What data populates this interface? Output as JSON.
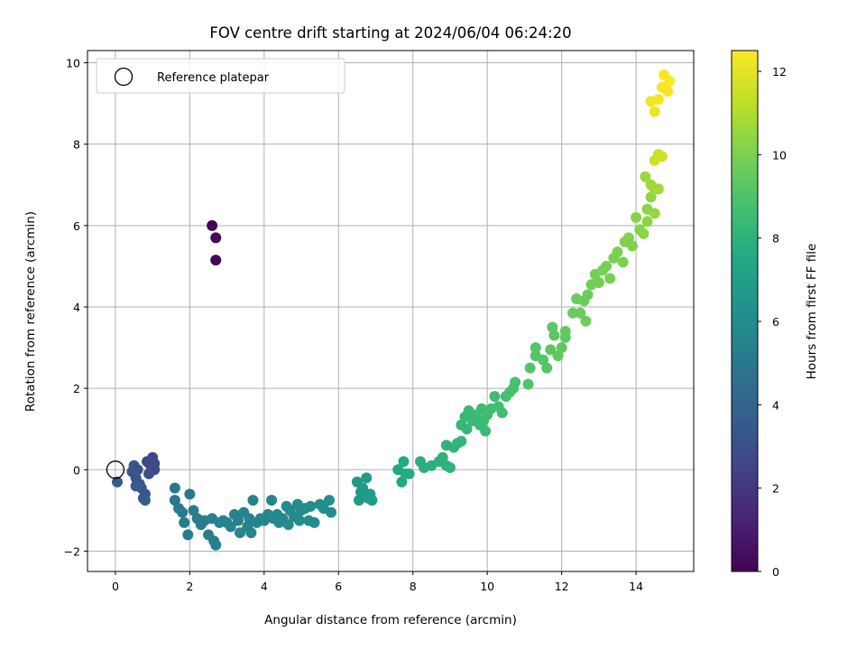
{
  "chart_data": {
    "type": "scatter",
    "title": "FOV centre drift starting at 2024/06/04 06:24:20",
    "xlabel": "Angular distance from reference (arcmin)",
    "ylabel": "Rotation from reference (arcmin)",
    "xlim": [
      -0.75,
      15.55
    ],
    "ylim": [
      -2.5,
      10.3
    ],
    "xticks": [
      0,
      2,
      4,
      6,
      8,
      10,
      12,
      14
    ],
    "yticks": [
      -2,
      0,
      2,
      4,
      6,
      8,
      10
    ],
    "xtick_labels": [
      "0",
      "2",
      "4",
      "6",
      "8",
      "10",
      "12",
      "14"
    ],
    "ytick_labels": [
      "−2",
      "0",
      "2",
      "4",
      "6",
      "8",
      "10"
    ],
    "grid": true,
    "colormap": "viridis",
    "colorbar": {
      "label": "Hours from first FF file",
      "range": [
        0,
        12.5
      ],
      "ticks": [
        0,
        2,
        4,
        6,
        8,
        10,
        12
      ],
      "tick_labels": [
        "0",
        "2",
        "4",
        "6",
        "8",
        "10",
        "12"
      ]
    },
    "legend": {
      "entries": [
        "Reference platepar"
      ],
      "position": "upper-left"
    },
    "reference_point": {
      "x": 0,
      "y": 0,
      "label": "Reference platepar"
    },
    "series": [
      {
        "points": [
          {
            "x": 2.6,
            "y": 6.0,
            "c": 0.1
          },
          {
            "x": 2.7,
            "y": 5.7,
            "c": 0.2
          },
          {
            "x": 2.7,
            "y": 5.15,
            "c": 0.3
          },
          {
            "x": 0.05,
            "y": -0.3,
            "c": 3.5
          },
          {
            "x": 0.45,
            "y": -0.05,
            "c": 3.4
          },
          {
            "x": 0.5,
            "y": 0.1,
            "c": 3.3
          },
          {
            "x": 0.55,
            "y": -0.2,
            "c": 3.2
          },
          {
            "x": 0.6,
            "y": 0.0,
            "c": 3.2
          },
          {
            "x": 0.65,
            "y": -0.35,
            "c": 3.3
          },
          {
            "x": 0.7,
            "y": -0.45,
            "c": 3.4
          },
          {
            "x": 0.75,
            "y": -0.7,
            "c": 3.5
          },
          {
            "x": 0.8,
            "y": -0.6,
            "c": 3.3
          },
          {
            "x": 0.85,
            "y": 0.2,
            "c": 2.8
          },
          {
            "x": 0.95,
            "y": 0.1,
            "c": 2.7
          },
          {
            "x": 1.0,
            "y": 0.3,
            "c": 2.6
          },
          {
            "x": 1.05,
            "y": 0.15,
            "c": 2.7
          },
          {
            "x": 1.05,
            "y": 0.0,
            "c": 2.8
          },
          {
            "x": 0.9,
            "y": -0.1,
            "c": 3.0
          },
          {
            "x": 0.55,
            "y": -0.4,
            "c": 3.5
          },
          {
            "x": 0.8,
            "y": -0.75,
            "c": 3.6
          },
          {
            "x": 1.6,
            "y": -0.45,
            "c": 5.0
          },
          {
            "x": 1.6,
            "y": -0.75,
            "c": 5.0
          },
          {
            "x": 1.7,
            "y": -0.95,
            "c": 5.1
          },
          {
            "x": 1.8,
            "y": -1.05,
            "c": 5.1
          },
          {
            "x": 1.85,
            "y": -1.3,
            "c": 5.1
          },
          {
            "x": 1.95,
            "y": -1.6,
            "c": 5.2
          },
          {
            "x": 2.0,
            "y": -0.6,
            "c": 5.0
          },
          {
            "x": 2.1,
            "y": -1.0,
            "c": 5.2
          },
          {
            "x": 2.2,
            "y": -1.2,
            "c": 5.3
          },
          {
            "x": 2.3,
            "y": -1.35,
            "c": 5.3
          },
          {
            "x": 2.4,
            "y": -1.25,
            "c": 5.3
          },
          {
            "x": 2.5,
            "y": -1.6,
            "c": 5.3
          },
          {
            "x": 2.6,
            "y": -1.2,
            "c": 5.4
          },
          {
            "x": 2.65,
            "y": -1.75,
            "c": 5.4
          },
          {
            "x": 2.7,
            "y": -1.85,
            "c": 5.4
          },
          {
            "x": 2.8,
            "y": -1.3,
            "c": 5.4
          },
          {
            "x": 2.9,
            "y": -1.25,
            "c": 5.5
          },
          {
            "x": 3.0,
            "y": -1.3,
            "c": 5.5
          },
          {
            "x": 3.1,
            "y": -1.4,
            "c": 5.5
          },
          {
            "x": 3.2,
            "y": -1.1,
            "c": 5.5
          },
          {
            "x": 3.3,
            "y": -1.25,
            "c": 5.5
          },
          {
            "x": 3.35,
            "y": -1.55,
            "c": 5.6
          },
          {
            "x": 3.45,
            "y": -1.05,
            "c": 5.6
          },
          {
            "x": 3.55,
            "y": -1.4,
            "c": 5.6
          },
          {
            "x": 3.6,
            "y": -1.2,
            "c": 5.6
          },
          {
            "x": 3.65,
            "y": -1.55,
            "c": 5.6
          },
          {
            "x": 3.7,
            "y": -0.75,
            "c": 5.6
          },
          {
            "x": 3.8,
            "y": -1.3,
            "c": 5.7
          },
          {
            "x": 3.9,
            "y": -1.2,
            "c": 5.7
          },
          {
            "x": 4.0,
            "y": -1.25,
            "c": 5.7
          },
          {
            "x": 4.1,
            "y": -1.1,
            "c": 5.7
          },
          {
            "x": 4.2,
            "y": -0.75,
            "c": 5.8
          },
          {
            "x": 4.25,
            "y": -1.2,
            "c": 5.8
          },
          {
            "x": 4.35,
            "y": -1.1,
            "c": 5.8
          },
          {
            "x": 4.4,
            "y": -1.3,
            "c": 5.8
          },
          {
            "x": 4.5,
            "y": -1.2,
            "c": 5.8
          },
          {
            "x": 4.6,
            "y": -0.9,
            "c": 5.9
          },
          {
            "x": 4.65,
            "y": -1.35,
            "c": 5.9
          },
          {
            "x": 4.7,
            "y": -1.0,
            "c": 5.9
          },
          {
            "x": 4.8,
            "y": -1.15,
            "c": 5.9
          },
          {
            "x": 4.9,
            "y": -0.85,
            "c": 5.9
          },
          {
            "x": 4.95,
            "y": -1.25,
            "c": 6.0
          },
          {
            "x": 5.0,
            "y": -1.0,
            "c": 6.0
          },
          {
            "x": 5.1,
            "y": -0.95,
            "c": 6.0
          },
          {
            "x": 5.2,
            "y": -1.25,
            "c": 6.0
          },
          {
            "x": 5.25,
            "y": -0.9,
            "c": 6.0
          },
          {
            "x": 5.35,
            "y": -1.3,
            "c": 6.1
          },
          {
            "x": 5.5,
            "y": -0.85,
            "c": 6.1
          },
          {
            "x": 5.6,
            "y": -0.95,
            "c": 6.1
          },
          {
            "x": 5.75,
            "y": -0.75,
            "c": 6.2
          },
          {
            "x": 5.8,
            "y": -1.05,
            "c": 6.2
          },
          {
            "x": 6.5,
            "y": -0.3,
            "c": 6.7
          },
          {
            "x": 6.55,
            "y": -0.75,
            "c": 6.7
          },
          {
            "x": 6.6,
            "y": -0.55,
            "c": 6.7
          },
          {
            "x": 6.65,
            "y": -0.45,
            "c": 6.7
          },
          {
            "x": 6.7,
            "y": -0.6,
            "c": 6.8
          },
          {
            "x": 6.75,
            "y": -0.2,
            "c": 6.8
          },
          {
            "x": 6.8,
            "y": -0.7,
            "c": 6.8
          },
          {
            "x": 6.85,
            "y": -0.6,
            "c": 6.8
          },
          {
            "x": 6.9,
            "y": -0.75,
            "c": 6.8
          },
          {
            "x": 7.6,
            "y": 0.0,
            "c": 7.5
          },
          {
            "x": 7.7,
            "y": -0.3,
            "c": 7.5
          },
          {
            "x": 7.75,
            "y": 0.2,
            "c": 7.5
          },
          {
            "x": 7.8,
            "y": -0.1,
            "c": 7.6
          },
          {
            "x": 7.9,
            "y": -0.1,
            "c": 7.6
          },
          {
            "x": 8.2,
            "y": 0.2,
            "c": 7.8
          },
          {
            "x": 8.3,
            "y": 0.05,
            "c": 7.8
          },
          {
            "x": 8.5,
            "y": 0.1,
            "c": 7.9
          },
          {
            "x": 8.7,
            "y": 0.2,
            "c": 8.0
          },
          {
            "x": 8.8,
            "y": 0.3,
            "c": 8.0
          },
          {
            "x": 8.9,
            "y": 0.1,
            "c": 8.0
          },
          {
            "x": 8.9,
            "y": 0.6,
            "c": 8.1
          },
          {
            "x": 9.0,
            "y": 0.05,
            "c": 8.1
          },
          {
            "x": 9.1,
            "y": 0.55,
            "c": 8.1
          },
          {
            "x": 9.2,
            "y": 0.65,
            "c": 8.2
          },
          {
            "x": 9.3,
            "y": 0.7,
            "c": 8.2
          },
          {
            "x": 9.3,
            "y": 1.1,
            "c": 8.3
          },
          {
            "x": 9.4,
            "y": 1.3,
            "c": 8.3
          },
          {
            "x": 9.45,
            "y": 1.0,
            "c": 8.3
          },
          {
            "x": 9.5,
            "y": 1.45,
            "c": 8.4
          },
          {
            "x": 9.6,
            "y": 1.2,
            "c": 8.4
          },
          {
            "x": 9.7,
            "y": 1.35,
            "c": 8.4
          },
          {
            "x": 9.8,
            "y": 1.1,
            "c": 8.5
          },
          {
            "x": 9.85,
            "y": 1.5,
            "c": 8.5
          },
          {
            "x": 9.9,
            "y": 1.2,
            "c": 8.5
          },
          {
            "x": 9.95,
            "y": 0.95,
            "c": 8.5
          },
          {
            "x": 10.0,
            "y": 1.35,
            "c": 8.6
          },
          {
            "x": 10.1,
            "y": 1.5,
            "c": 8.6
          },
          {
            "x": 10.2,
            "y": 1.8,
            "c": 8.6
          },
          {
            "x": 10.3,
            "y": 1.55,
            "c": 8.7
          },
          {
            "x": 10.4,
            "y": 1.4,
            "c": 8.7
          },
          {
            "x": 10.5,
            "y": 1.8,
            "c": 8.7
          },
          {
            "x": 10.6,
            "y": 1.9,
            "c": 8.8
          },
          {
            "x": 10.7,
            "y": 2.0,
            "c": 8.8
          },
          {
            "x": 10.75,
            "y": 2.15,
            "c": 8.8
          },
          {
            "x": 11.1,
            "y": 2.1,
            "c": 9.0
          },
          {
            "x": 11.15,
            "y": 2.5,
            "c": 9.1
          },
          {
            "x": 11.3,
            "y": 2.8,
            "c": 9.1
          },
          {
            "x": 11.3,
            "y": 3.0,
            "c": 9.1
          },
          {
            "x": 11.5,
            "y": 2.7,
            "c": 9.2
          },
          {
            "x": 11.6,
            "y": 2.5,
            "c": 9.2
          },
          {
            "x": 11.7,
            "y": 2.95,
            "c": 9.3
          },
          {
            "x": 11.75,
            "y": 3.5,
            "c": 9.3
          },
          {
            "x": 11.8,
            "y": 3.3,
            "c": 9.3
          },
          {
            "x": 11.9,
            "y": 2.8,
            "c": 9.4
          },
          {
            "x": 12.0,
            "y": 3.0,
            "c": 9.4
          },
          {
            "x": 12.1,
            "y": 3.25,
            "c": 9.4
          },
          {
            "x": 12.1,
            "y": 3.4,
            "c": 9.5
          },
          {
            "x": 12.3,
            "y": 3.85,
            "c": 9.6
          },
          {
            "x": 12.4,
            "y": 4.2,
            "c": 9.6
          },
          {
            "x": 12.5,
            "y": 3.85,
            "c": 9.6
          },
          {
            "x": 12.6,
            "y": 4.15,
            "c": 9.7
          },
          {
            "x": 12.65,
            "y": 3.65,
            "c": 9.7
          },
          {
            "x": 12.7,
            "y": 4.3,
            "c": 9.7
          },
          {
            "x": 12.8,
            "y": 4.55,
            "c": 9.8
          },
          {
            "x": 12.9,
            "y": 4.8,
            "c": 9.8
          },
          {
            "x": 13.0,
            "y": 4.6,
            "c": 9.8
          },
          {
            "x": 13.1,
            "y": 4.9,
            "c": 9.9
          },
          {
            "x": 13.2,
            "y": 5.0,
            "c": 9.9
          },
          {
            "x": 13.3,
            "y": 4.7,
            "c": 9.9
          },
          {
            "x": 13.4,
            "y": 5.2,
            "c": 10.0
          },
          {
            "x": 13.5,
            "y": 5.35,
            "c": 10.0
          },
          {
            "x": 13.65,
            "y": 5.1,
            "c": 10.0
          },
          {
            "x": 13.7,
            "y": 5.6,
            "c": 10.1
          },
          {
            "x": 13.8,
            "y": 5.7,
            "c": 10.1
          },
          {
            "x": 13.9,
            "y": 5.5,
            "c": 10.1
          },
          {
            "x": 14.0,
            "y": 6.2,
            "c": 10.2
          },
          {
            "x": 14.1,
            "y": 5.9,
            "c": 10.2
          },
          {
            "x": 14.2,
            "y": 5.8,
            "c": 10.3
          },
          {
            "x": 14.3,
            "y": 6.4,
            "c": 10.3
          },
          {
            "x": 14.3,
            "y": 6.1,
            "c": 10.4
          },
          {
            "x": 14.4,
            "y": 6.7,
            "c": 10.4
          },
          {
            "x": 14.5,
            "y": 6.3,
            "c": 10.5
          },
          {
            "x": 14.25,
            "y": 7.2,
            "c": 10.6
          },
          {
            "x": 14.4,
            "y": 7.0,
            "c": 10.6
          },
          {
            "x": 14.5,
            "y": 6.9,
            "c": 10.7
          },
          {
            "x": 14.6,
            "y": 6.9,
            "c": 10.7
          },
          {
            "x": 14.5,
            "y": 7.6,
            "c": 11.5
          },
          {
            "x": 14.6,
            "y": 7.75,
            "c": 11.5
          },
          {
            "x": 14.7,
            "y": 7.7,
            "c": 11.6
          },
          {
            "x": 14.4,
            "y": 9.05,
            "c": 12.2
          },
          {
            "x": 14.5,
            "y": 8.8,
            "c": 12.2
          },
          {
            "x": 14.6,
            "y": 9.1,
            "c": 12.3
          },
          {
            "x": 14.7,
            "y": 9.4,
            "c": 12.3
          },
          {
            "x": 14.75,
            "y": 9.7,
            "c": 12.4
          },
          {
            "x": 14.85,
            "y": 9.3,
            "c": 12.4
          },
          {
            "x": 14.9,
            "y": 9.55,
            "c": 12.5
          }
        ]
      }
    ]
  }
}
